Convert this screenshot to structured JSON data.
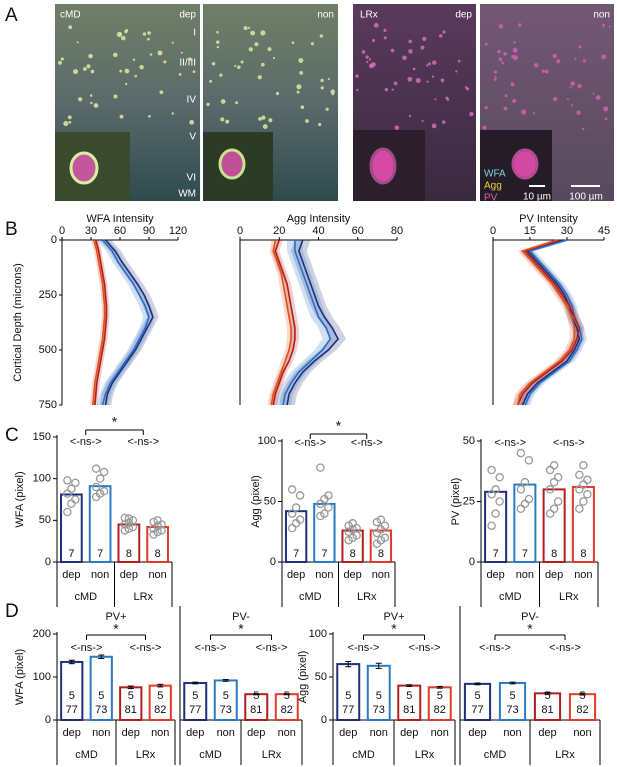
{
  "panel_labels": [
    "A",
    "B",
    "C",
    "D"
  ],
  "images": [
    {
      "group": "cMD",
      "condition": "dep",
      "layers": [
        "I",
        "II/III",
        "IV",
        "V",
        "VI",
        "WM"
      ]
    },
    {
      "condition": "non"
    },
    {
      "group": "LRx",
      "condition": "dep"
    },
    {
      "condition": "non",
      "legend": [
        "WFA",
        "Agg",
        "PV"
      ],
      "scale_bars": [
        "10 µm",
        "100 µm"
      ]
    }
  ],
  "chart_data": [
    {
      "type": "line",
      "title": "WFA Intensity",
      "ylabel": "Cortical Depth (microns)",
      "y": [
        0,
        50,
        100,
        150,
        200,
        250,
        300,
        350,
        400,
        450,
        500,
        550,
        600,
        650,
        700,
        750
      ],
      "xlim": [
        0,
        120
      ],
      "xticks": [
        0,
        30,
        60,
        90,
        120
      ],
      "ylim": [
        0,
        750
      ],
      "yticks": [
        0,
        250,
        500,
        750
      ],
      "series": [
        {
          "color": "#1f2f7a",
          "error": 6,
          "values": [
            45,
            55,
            62,
            70,
            78,
            85,
            90,
            94,
            88,
            82,
            76,
            68,
            60,
            52,
            47,
            45
          ]
        },
        {
          "color": "#2a6cc4",
          "error": 6,
          "values": [
            42,
            52,
            58,
            66,
            74,
            80,
            86,
            90,
            86,
            80,
            74,
            66,
            58,
            50,
            45,
            42
          ]
        },
        {
          "color": "#b01e1e",
          "error": 3,
          "values": [
            35,
            38,
            40,
            42,
            44,
            45,
            46,
            46,
            45,
            44,
            42,
            40,
            38,
            36,
            35,
            34
          ]
        },
        {
          "color": "#e0501a",
          "error": 3,
          "values": [
            33,
            36,
            38,
            40,
            42,
            43,
            44,
            44,
            43,
            42,
            40,
            38,
            36,
            34,
            33,
            32
          ]
        }
      ]
    },
    {
      "type": "line",
      "title": "Agg Intensity",
      "y": [
        0,
        50,
        100,
        150,
        200,
        250,
        300,
        350,
        400,
        450,
        500,
        550,
        600,
        650,
        700,
        750
      ],
      "xlim": [
        0,
        80
      ],
      "xticks": [
        0,
        20,
        40,
        60,
        80
      ],
      "ylim": [
        0,
        750
      ],
      "series": [
        {
          "color": "#1f2f7a",
          "error": 4,
          "values": [
            32,
            30,
            32,
            34,
            36,
            38,
            40,
            43,
            47,
            50,
            45,
            38,
            32,
            28,
            25,
            24
          ]
        },
        {
          "color": "#2a6cc4",
          "error": 4,
          "values": [
            28,
            28,
            30,
            32,
            34,
            36,
            38,
            40,
            44,
            46,
            42,
            36,
            30,
            26,
            23,
            22
          ]
        },
        {
          "color": "#b01e1e",
          "error": 2,
          "values": [
            20,
            18,
            20,
            22,
            24,
            25,
            26,
            27,
            28,
            28,
            27,
            25,
            22,
            20,
            18,
            17
          ]
        },
        {
          "color": "#e0501a",
          "error": 2,
          "values": [
            18,
            17,
            19,
            21,
            22,
            23,
            24,
            25,
            26,
            26,
            25,
            23,
            21,
            19,
            17,
            16
          ]
        }
      ]
    },
    {
      "type": "line",
      "title": "PV Intensity",
      "y": [
        0,
        50,
        100,
        150,
        200,
        250,
        300,
        350,
        400,
        450,
        500,
        550,
        600,
        650,
        700,
        750
      ],
      "xlim": [
        0,
        45
      ],
      "xticks": [
        0,
        15,
        30,
        45
      ],
      "ylim": [
        0,
        750
      ],
      "series": [
        {
          "color": "#1f2f7a",
          "error": 2,
          "values": [
            28,
            14,
            18,
            22,
            26,
            29,
            31,
            32,
            34,
            35,
            33,
            30,
            24,
            18,
            14,
            12
          ]
        },
        {
          "color": "#2a6cc4",
          "error": 2,
          "values": [
            30,
            15,
            19,
            23,
            27,
            30,
            32,
            33,
            35,
            36,
            34,
            31,
            25,
            19,
            15,
            13
          ]
        },
        {
          "color": "#b01e1e",
          "error": 2,
          "values": [
            27,
            13,
            17,
            21,
            25,
            28,
            31,
            33,
            35,
            34,
            32,
            28,
            22,
            16,
            12,
            10
          ]
        },
        {
          "color": "#e0501a",
          "error": 2,
          "values": [
            26,
            12,
            16,
            20,
            24,
            27,
            30,
            32,
            33,
            33,
            31,
            27,
            21,
            15,
            11,
            10
          ]
        }
      ]
    },
    {
      "type": "bar",
      "ylabel": "WFA (pixel)",
      "categories": [
        "dep",
        "non",
        "dep",
        "non"
      ],
      "groups": [
        "cMD",
        "LRx"
      ],
      "colors": [
        "#1f2f7a",
        "#2a7ac4",
        "#b01e1e",
        "#e03a2a"
      ],
      "values": [
        81,
        91,
        45,
        42
      ],
      "n": [
        7,
        7,
        8,
        8
      ],
      "points": [
        [
          60,
          70,
          75,
          82,
          88,
          95,
          98
        ],
        [
          78,
          82,
          85,
          90,
          100,
          108,
          112
        ],
        [
          38,
          40,
          42,
          45,
          47,
          50,
          53,
          52
        ],
        [
          33,
          36,
          38,
          40,
          43,
          45,
          48,
          50
        ]
      ],
      "ylim": [
        0,
        150
      ],
      "yticks": [
        0,
        50,
        100,
        150
      ],
      "significance": {
        "outer": "*",
        "inner": [
          "<-ns->",
          "<-ns->"
        ]
      }
    },
    {
      "type": "bar",
      "ylabel": "Agg (pixel)",
      "categories": [
        "dep",
        "non",
        "dep",
        "non"
      ],
      "groups": [
        "cMD",
        "LRx"
      ],
      "colors": [
        "#1f2f7a",
        "#2a7ac4",
        "#b01e1e",
        "#e03a2a"
      ],
      "values": [
        42,
        48,
        26,
        26
      ],
      "n": [
        7,
        7,
        8,
        8
      ],
      "points": [
        [
          28,
          32,
          35,
          40,
          45,
          55,
          60
        ],
        [
          38,
          40,
          45,
          48,
          52,
          55,
          78
        ],
        [
          18,
          20,
          22,
          25,
          27,
          28,
          30,
          32
        ],
        [
          15,
          18,
          20,
          24,
          27,
          30,
          33,
          35
        ]
      ],
      "ylim": [
        0,
        100
      ],
      "yticks": [
        0,
        50,
        100
      ],
      "significance": {
        "outer": "*",
        "inner": [
          "<-ns->",
          "<-ns->"
        ]
      }
    },
    {
      "type": "bar",
      "ylabel": "PV (pixel)",
      "categories": [
        "dep",
        "non",
        "dep",
        "non"
      ],
      "groups": [
        "cMD",
        "LRx"
      ],
      "colors": [
        "#1f2f7a",
        "#2a7ac4",
        "#b01e1e",
        "#e03a2a"
      ],
      "values": [
        29,
        32,
        30,
        31
      ],
      "n": [
        7,
        7,
        8,
        8
      ],
      "points": [
        [
          15,
          20,
          25,
          28,
          30,
          35,
          38
        ],
        [
          22,
          24,
          26,
          30,
          33,
          42,
          45
        ],
        [
          20,
          22,
          25,
          30,
          33,
          35,
          38,
          40
        ],
        [
          22,
          25,
          28,
          30,
          32,
          34,
          36,
          40
        ]
      ],
      "ylim": [
        0,
        50
      ],
      "yticks": [
        0,
        25,
        50
      ],
      "significance": {
        "inner": [
          "<-ns->",
          "<-ns->"
        ]
      }
    },
    {
      "type": "bar",
      "title": "PV+",
      "ylabel": "WFA (pixel)",
      "categories": [
        "dep",
        "non",
        "dep",
        "non"
      ],
      "groups": [
        "cMD",
        "LRx"
      ],
      "colors": [
        "#1f2f7a",
        "#2a7ac4",
        "#b01e1e",
        "#e03a2a"
      ],
      "values": [
        135,
        147,
        76,
        80
      ],
      "errors": [
        4,
        4,
        3,
        3
      ],
      "n_mice": [
        5,
        5,
        5,
        5
      ],
      "n_cells": [
        77,
        73,
        81,
        82
      ],
      "ylim": [
        0,
        200
      ],
      "yticks": [
        0,
        100,
        200
      ],
      "significance": {
        "outer": "*",
        "inner": [
          "<-ns->",
          "<-ns->"
        ]
      }
    },
    {
      "type": "bar",
      "title": "PV-",
      "categories": [
        "dep",
        "non",
        "dep",
        "non"
      ],
      "groups": [
        "cMD",
        "LRx"
      ],
      "colors": [
        "#1f2f7a",
        "#2a7ac4",
        "#b01e1e",
        "#e03a2a"
      ],
      "values": [
        86,
        92,
        60,
        60
      ],
      "errors": [
        2,
        2,
        1,
        1
      ],
      "n_mice": [
        5,
        5,
        5,
        5
      ],
      "n_cells": [
        77,
        73,
        81,
        82
      ],
      "ylim": [
        0,
        200
      ],
      "significance": {
        "outer": "*",
        "inner": [
          "<-ns->",
          "<-ns->"
        ]
      }
    },
    {
      "type": "bar",
      "title": "PV+",
      "ylabel": "Agg (pixel)",
      "categories": [
        "dep",
        "non",
        "dep",
        "non"
      ],
      "groups": [
        "cMD",
        "LRx"
      ],
      "colors": [
        "#1f2f7a",
        "#2a7ac4",
        "#b01e1e",
        "#e03a2a"
      ],
      "values": [
        65,
        63,
        40,
        38
      ],
      "errors": [
        3,
        3,
        1,
        1
      ],
      "n_mice": [
        5,
        5,
        5,
        5
      ],
      "n_cells": [
        77,
        73,
        81,
        82
      ],
      "ylim": [
        0,
        100
      ],
      "yticks": [
        0,
        50,
        100
      ],
      "significance": {
        "outer": "*",
        "inner": [
          "<-ns->",
          "<-ns->"
        ]
      }
    },
    {
      "type": "bar",
      "title": "PV-",
      "categories": [
        "dep",
        "non",
        "dep",
        "non"
      ],
      "groups": [
        "cMD",
        "LRx"
      ],
      "colors": [
        "#1f2f7a",
        "#2a7ac4",
        "#b01e1e",
        "#e03a2a"
      ],
      "values": [
        42,
        43,
        31,
        30
      ],
      "errors": [
        1,
        1,
        1,
        1
      ],
      "n_mice": [
        5,
        5,
        5,
        5
      ],
      "n_cells": [
        77,
        73,
        81,
        82
      ],
      "ylim": [
        0,
        100
      ],
      "significance": {
        "outer": "*",
        "inner": [
          "<-ns->",
          "<-ns->"
        ]
      }
    }
  ]
}
